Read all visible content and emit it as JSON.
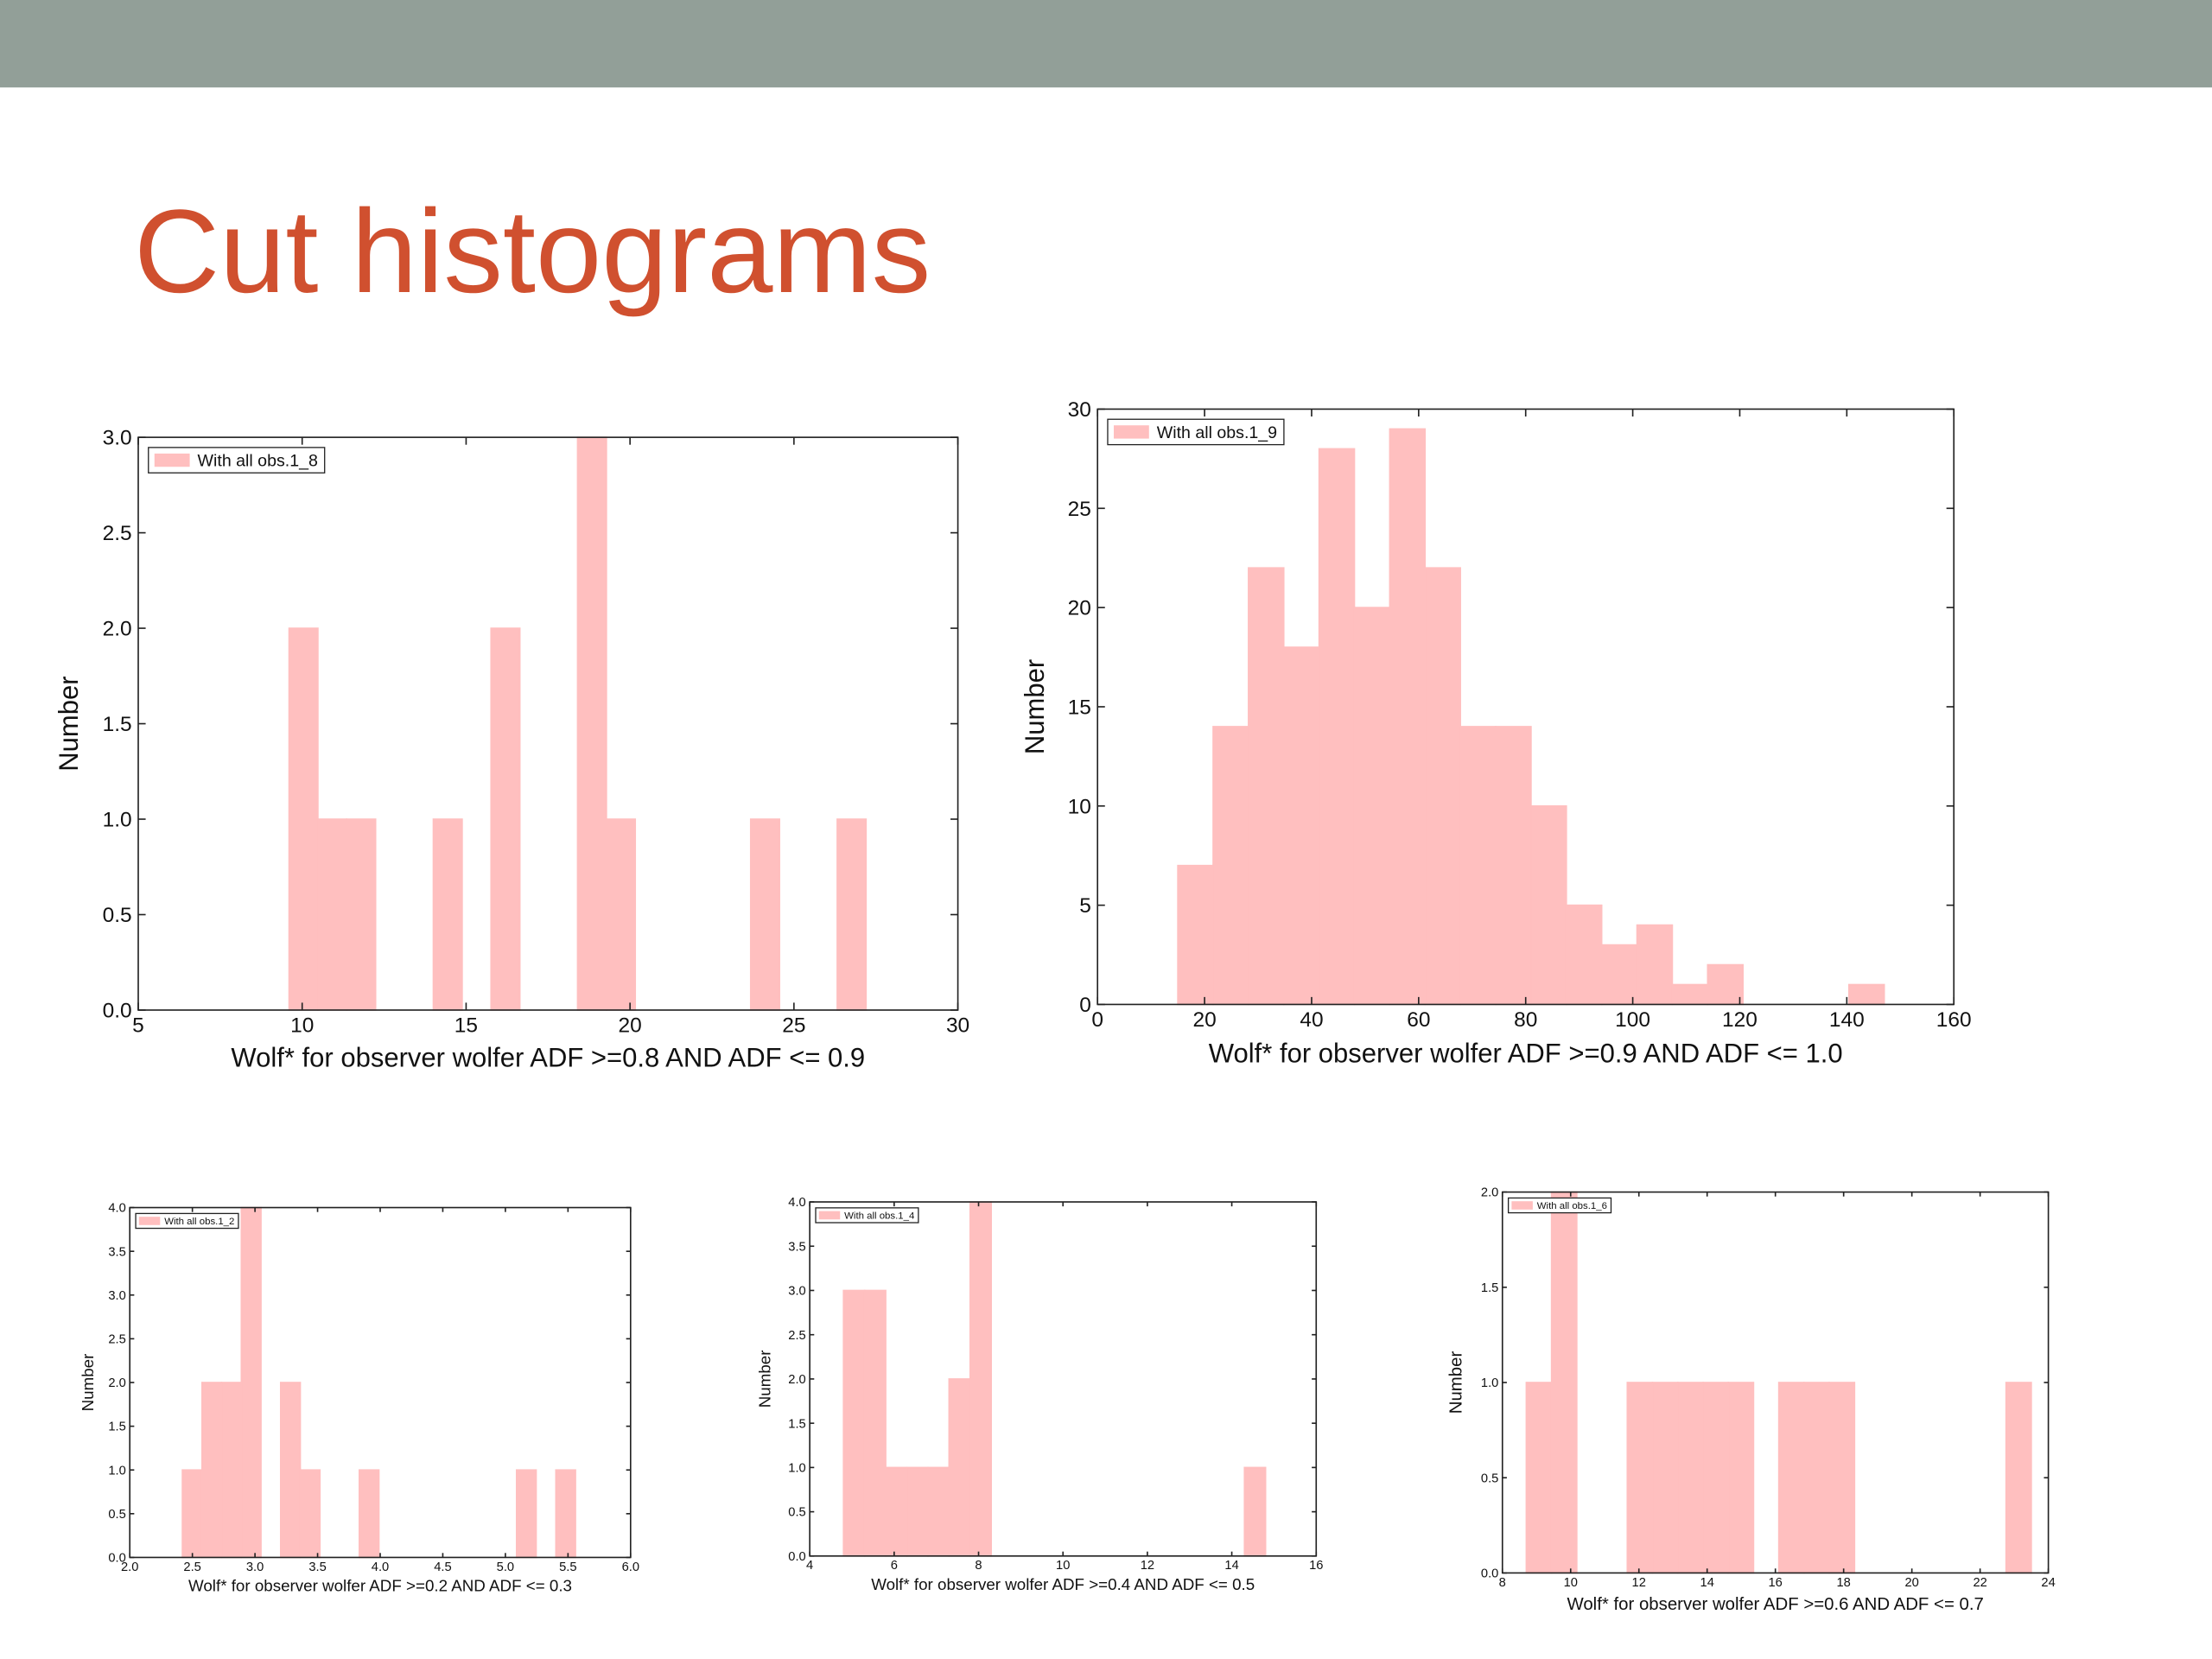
{
  "slide": {
    "title": "Cut histograms"
  },
  "chart_data": [
    {
      "type": "histogram",
      "series": [
        {
          "name": "With all obs.1_8",
          "color": "#ffbfbf",
          "values": [
            2,
            1,
            1,
            0,
            0,
            1,
            0,
            2,
            0,
            0,
            3,
            1,
            0,
            0,
            0,
            0,
            1,
            0,
            0,
            1
          ]
        }
      ],
      "bins": [
        9.6,
        10.48,
        11.36,
        12.24,
        13.12,
        14.0,
        14.88,
        15.76,
        16.64,
        17.52,
        18.4,
        19.28,
        20.16,
        21.04,
        21.92,
        22.8,
        23.68,
        24.56,
        25.44,
        26.32,
        27.2
      ],
      "x_label": "Wolf* for observer wolfer ADF >=0.8 AND ADF <= 0.9",
      "y_label": "Number",
      "xlim": [
        5,
        30
      ],
      "xticks": [
        5,
        10,
        15,
        20,
        25,
        30
      ],
      "ylim": [
        0,
        3
      ],
      "yticks": [
        {
          "value": 0,
          "label": "0.0"
        },
        0.5,
        {
          "value": 1,
          "label": "1.0"
        },
        1.5,
        {
          "value": 2,
          "label": "2.0"
        },
        2.5,
        {
          "value": 3,
          "label": "3.0"
        }
      ],
      "legend": "upper left"
    },
    {
      "type": "histogram",
      "series": [
        {
          "name": "With all obs.1_9",
          "color": "#ffbfbf",
          "values": [
            7,
            14,
            22,
            18,
            28,
            20,
            29,
            22,
            14,
            14,
            10,
            5,
            3,
            4,
            1,
            2,
            0,
            0,
            0,
            1
          ]
        }
      ],
      "bins": [
        15,
        21.6,
        28.2,
        34.8,
        41.4,
        48,
        54.6,
        61.2,
        67.8,
        74.4,
        81,
        87.6,
        94.2,
        100.8,
        107.4,
        114,
        120.6,
        127.2,
        133.8,
        140.4,
        147
      ],
      "x_label": "Wolf* for observer wolfer ADF >=0.9 AND ADF <= 1.0",
      "y_label": "Number",
      "xlim": [
        0,
        160
      ],
      "xticks": [
        0,
        20,
        40,
        60,
        80,
        100,
        120,
        140,
        160
      ],
      "ylim": [
        0,
        30
      ],
      "yticks": [
        0,
        5,
        10,
        15,
        20,
        25,
        30
      ],
      "legend": "upper left"
    },
    {
      "type": "histogram",
      "series": [
        {
          "name": "With all obs.1_2",
          "color": "#ffbfbf",
          "values": [
            1,
            2,
            2,
            4,
            0,
            2,
            1,
            0,
            0,
            1,
            0,
            0,
            0,
            0,
            0,
            0,
            0,
            1,
            0,
            1
          ]
        }
      ],
      "bins": [
        2.42,
        2.577,
        2.734,
        2.891,
        3.048,
        3.205,
        3.362,
        3.519,
        3.676,
        3.833,
        3.99,
        4.147,
        4.304,
        4.461,
        4.618,
        4.775,
        4.932,
        5.089,
        5.246,
        5.403,
        5.56
      ],
      "x_label": "Wolf* for observer wolfer ADF >=0.2 AND ADF <= 0.3",
      "y_label": "Number",
      "xlim": [
        2,
        6
      ],
      "xticks": [
        {
          "value": 2,
          "label": "2.0"
        },
        2.5,
        {
          "value": 3,
          "label": "3.0"
        },
        3.5,
        {
          "value": 4,
          "label": "4.0"
        },
        4.5,
        {
          "value": 5,
          "label": "5.0"
        },
        5.5,
        {
          "value": 6,
          "label": "6.0"
        }
      ],
      "ylim": [
        0,
        4
      ],
      "yticks": [
        {
          "value": 0,
          "label": "0.0"
        },
        0.5,
        {
          "value": 1,
          "label": "1.0"
        },
        1.5,
        {
          "value": 2,
          "label": "2.0"
        },
        2.5,
        {
          "value": 3,
          "label": "3.0"
        },
        3.5,
        {
          "value": 4,
          "label": "4.0"
        }
      ],
      "legend": "upper left"
    },
    {
      "type": "histogram",
      "series": [
        {
          "name": "With all obs.1_4",
          "color": "#ffbfbf",
          "values": [
            3,
            3,
            1,
            1,
            1,
            2,
            4,
            0,
            0,
            0,
            0,
            0,
            0,
            0,
            0,
            0,
            0,
            0,
            0,
            1
          ]
        }
      ],
      "bins": [
        4.8,
        5.3,
        5.8,
        6.3,
        6.8,
        7.3,
        7.8,
        8.3,
        8.8,
        9.3,
        9.8,
        10.3,
        10.8,
        11.3,
        11.8,
        12.3,
        12.8,
        13.3,
        13.8,
        14.3,
        14.8
      ],
      "x_label": "Wolf* for observer wolfer ADF >=0.4 AND ADF <= 0.5",
      "y_label": "Number",
      "xlim": [
        4,
        16
      ],
      "xticks": [
        4,
        6,
        8,
        10,
        12,
        14,
        16
      ],
      "ylim": [
        0,
        4
      ],
      "yticks": [
        {
          "value": 0,
          "label": "0.0"
        },
        0.5,
        {
          "value": 1,
          "label": "1.0"
        },
        1.5,
        {
          "value": 2,
          "label": "2.0"
        },
        2.5,
        {
          "value": 3,
          "label": "3.0"
        },
        3.5,
        {
          "value": 4,
          "label": "4.0"
        }
      ],
      "legend": "upper left"
    },
    {
      "type": "histogram",
      "series": [
        {
          "name": "With all obs.1_6",
          "color": "#ffbfbf",
          "values": [
            1,
            2,
            0,
            0,
            1,
            1,
            1,
            1,
            1,
            0,
            1,
            1,
            1,
            0,
            0,
            0,
            0,
            0,
            0,
            1
          ]
        }
      ],
      "bins": [
        8.7,
        9.44,
        10.18,
        10.92,
        11.66,
        12.4,
        13.14,
        13.88,
        14.62,
        15.36,
        16.1,
        16.84,
        17.58,
        18.32,
        19.06,
        19.8,
        20.54,
        21.28,
        22.02,
        22.76,
        23.5
      ],
      "x_label": "Wolf* for observer wolfer ADF >=0.6 AND ADF <= 0.7",
      "y_label": "Number",
      "xlim": [
        8,
        24
      ],
      "xticks": [
        8,
        10,
        12,
        14,
        16,
        18,
        20,
        22,
        24
      ],
      "ylim": [
        0,
        2
      ],
      "yticks": [
        {
          "value": 0,
          "label": "0.0"
        },
        0.5,
        {
          "value": 1,
          "label": "1.0"
        },
        1.5,
        {
          "value": 2,
          "label": "2.0"
        }
      ],
      "legend": "upper left"
    }
  ]
}
